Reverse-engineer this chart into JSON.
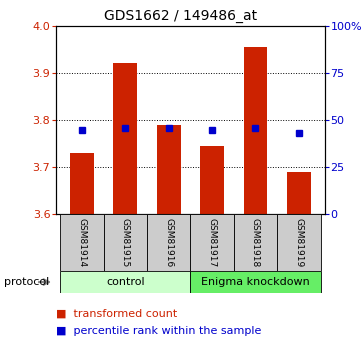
{
  "title": "GDS1662 / 149486_at",
  "samples": [
    "GSM81914",
    "GSM81915",
    "GSM81916",
    "GSM81917",
    "GSM81918",
    "GSM81919"
  ],
  "bar_values": [
    3.73,
    3.92,
    3.79,
    3.745,
    3.955,
    3.69
  ],
  "percentile_values": [
    3.778,
    3.782,
    3.782,
    3.779,
    3.782,
    3.773
  ],
  "ylim_left": [
    3.6,
    4.0
  ],
  "ylim_right": [
    0,
    100
  ],
  "yticks_left": [
    3.6,
    3.7,
    3.8,
    3.9,
    4.0
  ],
  "yticks_right": [
    0,
    25,
    50,
    75,
    100
  ],
  "ytick_labels_right": [
    "0",
    "25",
    "50",
    "75",
    "100%"
  ],
  "bar_color": "#cc2200",
  "percentile_color": "#0000cc",
  "bar_bottom": 3.6,
  "groups": [
    {
      "label": "control",
      "start": 0,
      "end": 3,
      "color": "#ccffcc"
    },
    {
      "label": "Enigma knockdown",
      "start": 3,
      "end": 6,
      "color": "#66ee66"
    }
  ],
  "protocol_label": "protocol",
  "grid_color": "black",
  "background_color": "#ffffff",
  "sample_box_color": "#cccccc"
}
